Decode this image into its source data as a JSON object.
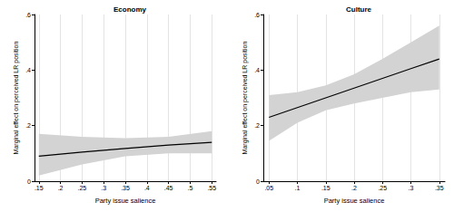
{
  "chart_data": [
    {
      "type": "line",
      "title": "Economy",
      "x_label": "Party issue salience",
      "y_label": "Marginal effect on perceived LR position",
      "x": [
        0.15,
        0.25,
        0.35,
        0.45,
        0.55
      ],
      "values": [
        0.09,
        0.105,
        0.118,
        0.13,
        0.14
      ],
      "lower": [
        0.02,
        0.06,
        0.09,
        0.1,
        0.1
      ],
      "upper": [
        0.17,
        0.16,
        0.155,
        0.16,
        0.18
      ],
      "color": "#000000",
      "xlim": [
        0.14,
        0.56
      ],
      "xticks": [
        {
          "value": 0.15,
          "label": ".15"
        },
        {
          "value": 0.2,
          "label": ".2"
        },
        {
          "value": 0.25,
          "label": ".25"
        },
        {
          "value": 0.3,
          "label": ".3"
        },
        {
          "value": 0.35,
          "label": ".35"
        },
        {
          "value": 0.4,
          "label": ".4"
        },
        {
          "value": 0.45,
          "label": ".45"
        },
        {
          "value": 0.5,
          "label": ".5"
        },
        {
          "value": 0.55,
          "label": ".55"
        }
      ],
      "ylim": [
        0,
        0.6
      ],
      "yticks": [
        0,
        {
          "value": 0.2,
          "label": ".2"
        },
        {
          "value": 0.4,
          "label": ".4"
        },
        {
          "value": 0.6,
          "label": ".6"
        }
      ],
      "grid": true
    },
    {
      "type": "line",
      "title": "Culture",
      "x_label": "Party issue salience",
      "y_label": "Marginal effect on perceived LR position",
      "x": [
        0.05,
        0.1,
        0.15,
        0.2,
        0.25,
        0.3,
        0.35
      ],
      "values": [
        0.23,
        0.265,
        0.3,
        0.335,
        0.37,
        0.405,
        0.44
      ],
      "lower": [
        0.145,
        0.21,
        0.255,
        0.28,
        0.3,
        0.32,
        0.33
      ],
      "upper": [
        0.31,
        0.32,
        0.345,
        0.385,
        0.44,
        0.5,
        0.56
      ],
      "color": "#000000",
      "xlim": [
        0.04,
        0.36
      ],
      "xticks": [
        {
          "value": 0.05,
          "label": ".05"
        },
        {
          "value": 0.1,
          "label": ".1"
        },
        {
          "value": 0.15,
          "label": ".15"
        },
        {
          "value": 0.2,
          "label": ".2"
        },
        {
          "value": 0.25,
          "label": ".25"
        },
        {
          "value": 0.3,
          "label": ".3"
        },
        {
          "value": 0.35,
          "label": ".35"
        }
      ],
      "ylim": [
        0,
        0.6
      ],
      "yticks": [
        0,
        {
          "value": 0.2,
          "label": ".2"
        },
        {
          "value": 0.4,
          "label": ".4"
        },
        {
          "value": 0.6,
          "label": ".6"
        }
      ],
      "grid": true
    }
  ]
}
